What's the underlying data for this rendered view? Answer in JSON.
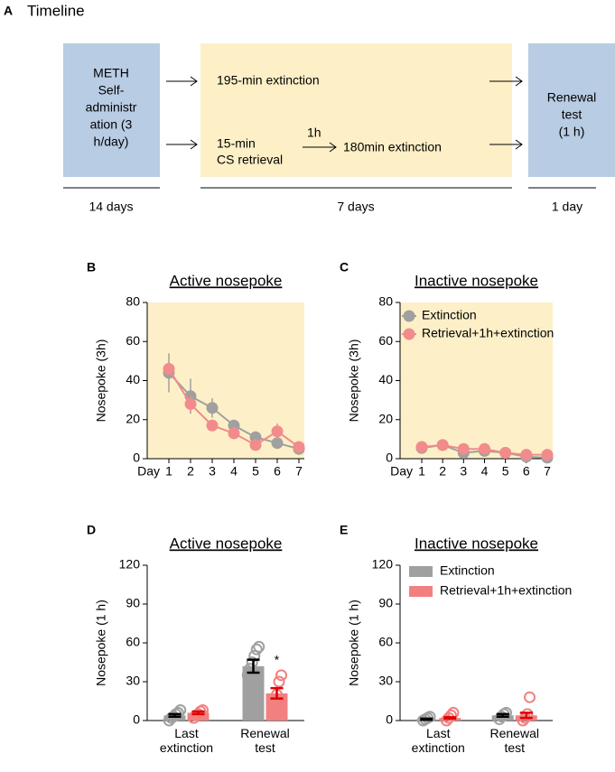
{
  "timeline": {
    "label": "A",
    "title": "Timeline",
    "self_administration": [
      "METH",
      "Self-",
      "administr",
      "ation (3",
      "h/day)"
    ],
    "extinction": "195-min extinction",
    "retrieval": [
      "15-min",
      "CS retrieval"
    ],
    "interval": "1h",
    "post_retrieval": "180min extinction",
    "renewal": [
      "Renewal",
      "test",
      "(1 h)"
    ],
    "durations": [
      "14 days",
      "7 days",
      "1 day"
    ]
  },
  "chart_data": [
    {
      "type": "line",
      "label": "B",
      "title": "Active nosepoke",
      "ylabel": "Nosepoke (3h)",
      "xlabel": "Day",
      "categories": [
        "1",
        "2",
        "3",
        "4",
        "5",
        "6",
        "7"
      ],
      "ylim": [
        0,
        80
      ],
      "yticks": [
        0,
        20,
        40,
        60,
        80
      ],
      "background": "#fdf0c8",
      "series": [
        {
          "name": "Extinction",
          "color": "#a0a0a0",
          "values": [
            44,
            32,
            26,
            17,
            11,
            8,
            5
          ],
          "errors": [
            10,
            9,
            5,
            2,
            3,
            2,
            2
          ]
        },
        {
          "name": "Retrieval+1h+extinction",
          "color": "#f28b8b",
          "values": [
            46,
            28,
            17,
            13,
            7,
            14,
            6
          ],
          "errors": [
            3,
            4,
            1,
            1,
            1,
            4,
            1
          ]
        }
      ]
    },
    {
      "type": "line",
      "label": "C",
      "title": "Inactive nosepoke",
      "ylabel": "Nosepoke (3h)",
      "xlabel": "Day",
      "categories": [
        "1",
        "2",
        "3",
        "4",
        "5",
        "6",
        "7"
      ],
      "ylim": [
        0,
        80
      ],
      "yticks": [
        0,
        20,
        40,
        60,
        80
      ],
      "background": "#fdf0c8",
      "legend": "upper left",
      "series": [
        {
          "name": "Extinction",
          "color": "#a0a0a0",
          "values": [
            5.5,
            7,
            3,
            4,
            3,
            1,
            0.5
          ],
          "errors": [
            1,
            1,
            1,
            1,
            1,
            0.5,
            0.5
          ]
        },
        {
          "name": "Retrieval+1h+extinction",
          "color": "#f28b8b",
          "values": [
            6,
            7,
            5,
            5,
            3,
            2,
            2
          ],
          "errors": [
            1,
            1,
            1,
            1,
            1,
            1,
            1
          ]
        }
      ]
    },
    {
      "type": "bar",
      "label": "D",
      "title": "Active nosepoke",
      "ylabel": "Nosepoke (1 h)",
      "categories": [
        "Last extinction",
        "Renewal test"
      ],
      "ylim": [
        0,
        120
      ],
      "yticks": [
        0,
        30,
        60,
        90,
        120
      ],
      "annotations": [
        {
          "text": "*"
        }
      ],
      "series": [
        {
          "name": "Extinction",
          "color": "#a0a0a0",
          "error_color": "#000000",
          "values": [
            4,
            42
          ],
          "errors": [
            1,
            5
          ],
          "points": [
            [
              0,
              2,
              3,
              5,
              6,
              8
            ],
            [
              35,
              40,
              45,
              50,
              55,
              57
            ]
          ]
        },
        {
          "name": "Retrieval+1h+extinction",
          "color": "#f28080",
          "error_color": "#e00000",
          "values": [
            6,
            21
          ],
          "errors": [
            1,
            4
          ],
          "points": [
            [
              2,
              4,
              5,
              7,
              8
            ],
            [
              12,
              15,
              20,
              30,
              35
            ]
          ]
        }
      ]
    },
    {
      "type": "bar",
      "label": "E",
      "title": "Inactive nosepoke",
      "ylabel": "Nosepoke (1 h)",
      "categories": [
        "Last extinction",
        "Renewal test"
      ],
      "ylim": [
        0,
        120
      ],
      "yticks": [
        0,
        30,
        60,
        90,
        120
      ],
      "legend": "upper left",
      "series": [
        {
          "name": "Extinction",
          "color": "#a0a0a0",
          "error_color": "#000000",
          "values": [
            1,
            4
          ],
          "errors": [
            0.5,
            1
          ],
          "points": [
            [
              0,
              1,
              2,
              3
            ],
            [
              1,
              3,
              5,
              6
            ]
          ]
        },
        {
          "name": "Retrieval+1h+extinction",
          "color": "#f28080",
          "error_color": "#e00000",
          "values": [
            2,
            4
          ],
          "errors": [
            0.5,
            2
          ],
          "points": [
            [
              0,
              2,
              4,
              6
            ],
            [
              0,
              2,
              5,
              18
            ]
          ]
        }
      ]
    }
  ]
}
